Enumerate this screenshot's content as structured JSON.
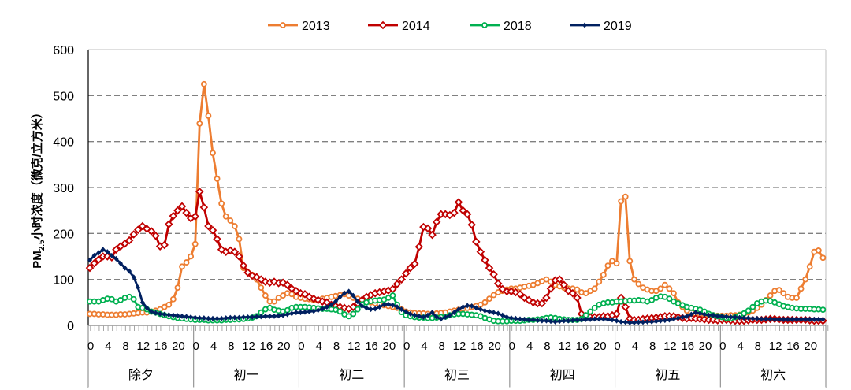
{
  "chart_data": {
    "type": "line",
    "title": "",
    "xlabel": "",
    "ylabel": "PM2.5小时浓度（微克/立方米）",
    "ylabel_parts": {
      "pre": "PM",
      "sub": "2.5",
      "post": "小时浓度（微克/立方米）"
    },
    "ylim": [
      0,
      600
    ],
    "yticks": [
      0,
      100,
      200,
      300,
      400,
      500,
      600
    ],
    "grid": "horizontal-dashed",
    "legend_position": "top-center",
    "days": [
      "除夕",
      "初一",
      "初二",
      "初三",
      "初四",
      "初五",
      "初六"
    ],
    "hours_per_day": 24,
    "x_tick_labels": [
      "0",
      "4",
      "8",
      "12",
      "16",
      "20"
    ],
    "series": [
      {
        "name": "2013",
        "color": "#ED7D31",
        "marker": "circle",
        "values": [
          25,
          25,
          24,
          24,
          23,
          23,
          23,
          24,
          24,
          25,
          26,
          27,
          28,
          28,
          30,
          32,
          35,
          40,
          45,
          57,
          82,
          128,
          137,
          150,
          177,
          439,
          525,
          456,
          375,
          319,
          265,
          237,
          228,
          216,
          188,
          125,
          115,
          110,
          100,
          82,
          65,
          52,
          52,
          60,
          65,
          70,
          68,
          62,
          60,
          58,
          57,
          55,
          55,
          58,
          60,
          62,
          64,
          66,
          68,
          65,
          60,
          58,
          55,
          52,
          50,
          48,
          46,
          44,
          42,
          40,
          38,
          35,
          30,
          28,
          27,
          26,
          26,
          25,
          25,
          26,
          27,
          28,
          30,
          32,
          34,
          36,
          38,
          40,
          42,
          45,
          50,
          58,
          66,
          72,
          75,
          78,
          80,
          80,
          82,
          84,
          86,
          88,
          92,
          96,
          100,
          95,
          88,
          85,
          82,
          80,
          80,
          78,
          72,
          70,
          75,
          80,
          95,
          110,
          130,
          140,
          135,
          270,
          280,
          140,
          100,
          90,
          82,
          78,
          75,
          75,
          80,
          88,
          80,
          70,
          50,
          40,
          32,
          28,
          25,
          24,
          23,
          22,
          22,
          21,
          21,
          21,
          22,
          22,
          23,
          25,
          28,
          32,
          38,
          45,
          55,
          65,
          75,
          77,
          70,
          62,
          60,
          60,
          80,
          100,
          128,
          160,
          163,
          147
        ]
      },
      {
        "name": "2014",
        "color": "#C00000",
        "marker": "diamond",
        "values": [
          125,
          135,
          143,
          150,
          150,
          148,
          165,
          172,
          178,
          185,
          198,
          208,
          216,
          210,
          205,
          195,
          172,
          175,
          220,
          238,
          250,
          259,
          245,
          233,
          237,
          291,
          257,
          216,
          207,
          188,
          165,
          160,
          163,
          160,
          150,
          130,
          115,
          108,
          105,
          100,
          95,
          93,
          95,
          92,
          93,
          88,
          80,
          75,
          70,
          68,
          62,
          58,
          55,
          52,
          50,
          45,
          42,
          40,
          38,
          36,
          40,
          48,
          55,
          62,
          66,
          70,
          72,
          74,
          76,
          79,
          90,
          100,
          113,
          125,
          134,
          171,
          214,
          211,
          197,
          225,
          242,
          242,
          240,
          245,
          268,
          250,
          242,
          219,
          182,
          160,
          142,
          125,
          111,
          91,
          79,
          74,
          74,
          72,
          68,
          60,
          55,
          50,
          48,
          48,
          60,
          80,
          98,
          100,
          88,
          75,
          70,
          60,
          25,
          20,
          18,
          18,
          18,
          20,
          20,
          22,
          25,
          60,
          40,
          15,
          12,
          12,
          14,
          15,
          16,
          17,
          18,
          20,
          20,
          20,
          18,
          16,
          15,
          16,
          15,
          14,
          13,
          12,
          12,
          11,
          12,
          12,
          11,
          10,
          10,
          10,
          11,
          12,
          12,
          12,
          13,
          14,
          14,
          13,
          12,
          12,
          12,
          12,
          12,
          12,
          11,
          10,
          10,
          10
        ]
      },
      {
        "name": "2018",
        "color": "#00B050",
        "marker": "circle",
        "values": [
          52,
          52,
          52,
          55,
          58,
          57,
          52,
          55,
          60,
          62,
          57,
          40,
          38,
          35,
          30,
          28,
          25,
          22,
          20,
          18,
          16,
          15,
          14,
          13,
          12,
          12,
          12,
          11,
          11,
          11,
          11,
          12,
          12,
          13,
          13,
          14,
          15,
          17,
          20,
          28,
          35,
          38,
          34,
          32,
          30,
          33,
          38,
          40,
          40,
          40,
          39,
          38,
          37,
          36,
          36,
          35,
          34,
          30,
          24,
          20,
          25,
          35,
          46,
          50,
          53,
          54,
          55,
          56,
          60,
          65,
          45,
          29,
          22,
          20,
          18,
          17,
          17,
          16,
          16,
          17,
          18,
          19,
          22,
          24,
          25,
          25,
          24,
          23,
          22,
          20,
          16,
          13,
          10,
          9,
          9,
          9,
          10,
          10,
          10,
          11,
          12,
          12,
          13,
          14,
          16,
          17,
          16,
          14,
          13,
          12,
          12,
          12,
          14,
          22,
          30,
          38,
          45,
          48,
          50,
          50,
          52,
          52,
          53,
          54,
          54,
          55,
          54,
          52,
          55,
          60,
          63,
          62,
          58,
          52,
          48,
          44,
          40,
          38,
          36,
          34,
          30,
          25,
          22,
          20,
          18,
          16,
          15,
          18,
          22,
          26,
          32,
          40,
          48,
          52,
          54,
          53,
          50,
          46,
          42,
          40,
          38,
          37,
          36,
          36,
          36,
          35,
          35,
          34
        ]
      },
      {
        "name": "2019",
        "color": "#002060",
        "marker": "filled-diamond",
        "values": [
          142,
          152,
          158,
          165,
          160,
          152,
          145,
          135,
          125,
          118,
          105,
          82,
          50,
          38,
          30,
          27,
          25,
          24,
          23,
          22,
          21,
          20,
          19,
          18,
          17,
          16,
          16,
          15,
          15,
          15,
          15,
          16,
          17,
          17,
          17,
          18,
          18,
          18,
          19,
          19,
          20,
          20,
          20,
          21,
          22,
          24,
          26,
          28,
          28,
          29,
          30,
          31,
          33,
          36,
          40,
          45,
          52,
          62,
          70,
          74,
          65,
          52,
          42,
          38,
          35,
          36,
          40,
          45,
          46,
          44,
          40,
          35,
          30,
          25,
          22,
          20,
          18,
          22,
          28,
          18,
          14,
          18,
          22,
          28,
          35,
          40,
          43,
          42,
          38,
          35,
          32,
          30,
          28,
          26,
          22,
          18,
          16,
          15,
          14,
          13,
          12,
          12,
          11,
          10,
          10,
          9,
          8,
          9,
          10,
          10,
          11,
          12,
          12,
          13,
          13,
          14,
          14,
          14,
          13,
          12,
          10,
          8,
          7,
          6,
          6,
          7,
          7,
          8,
          8,
          9,
          10,
          11,
          12,
          14,
          16,
          18,
          20,
          24,
          28,
          26,
          24,
          22,
          22,
          20,
          20,
          19,
          18,
          18,
          17,
          16,
          16,
          15,
          15,
          14,
          14,
          14,
          13,
          13,
          13,
          13,
          13,
          13,
          13,
          13,
          13,
          13,
          13,
          13
        ]
      }
    ]
  }
}
